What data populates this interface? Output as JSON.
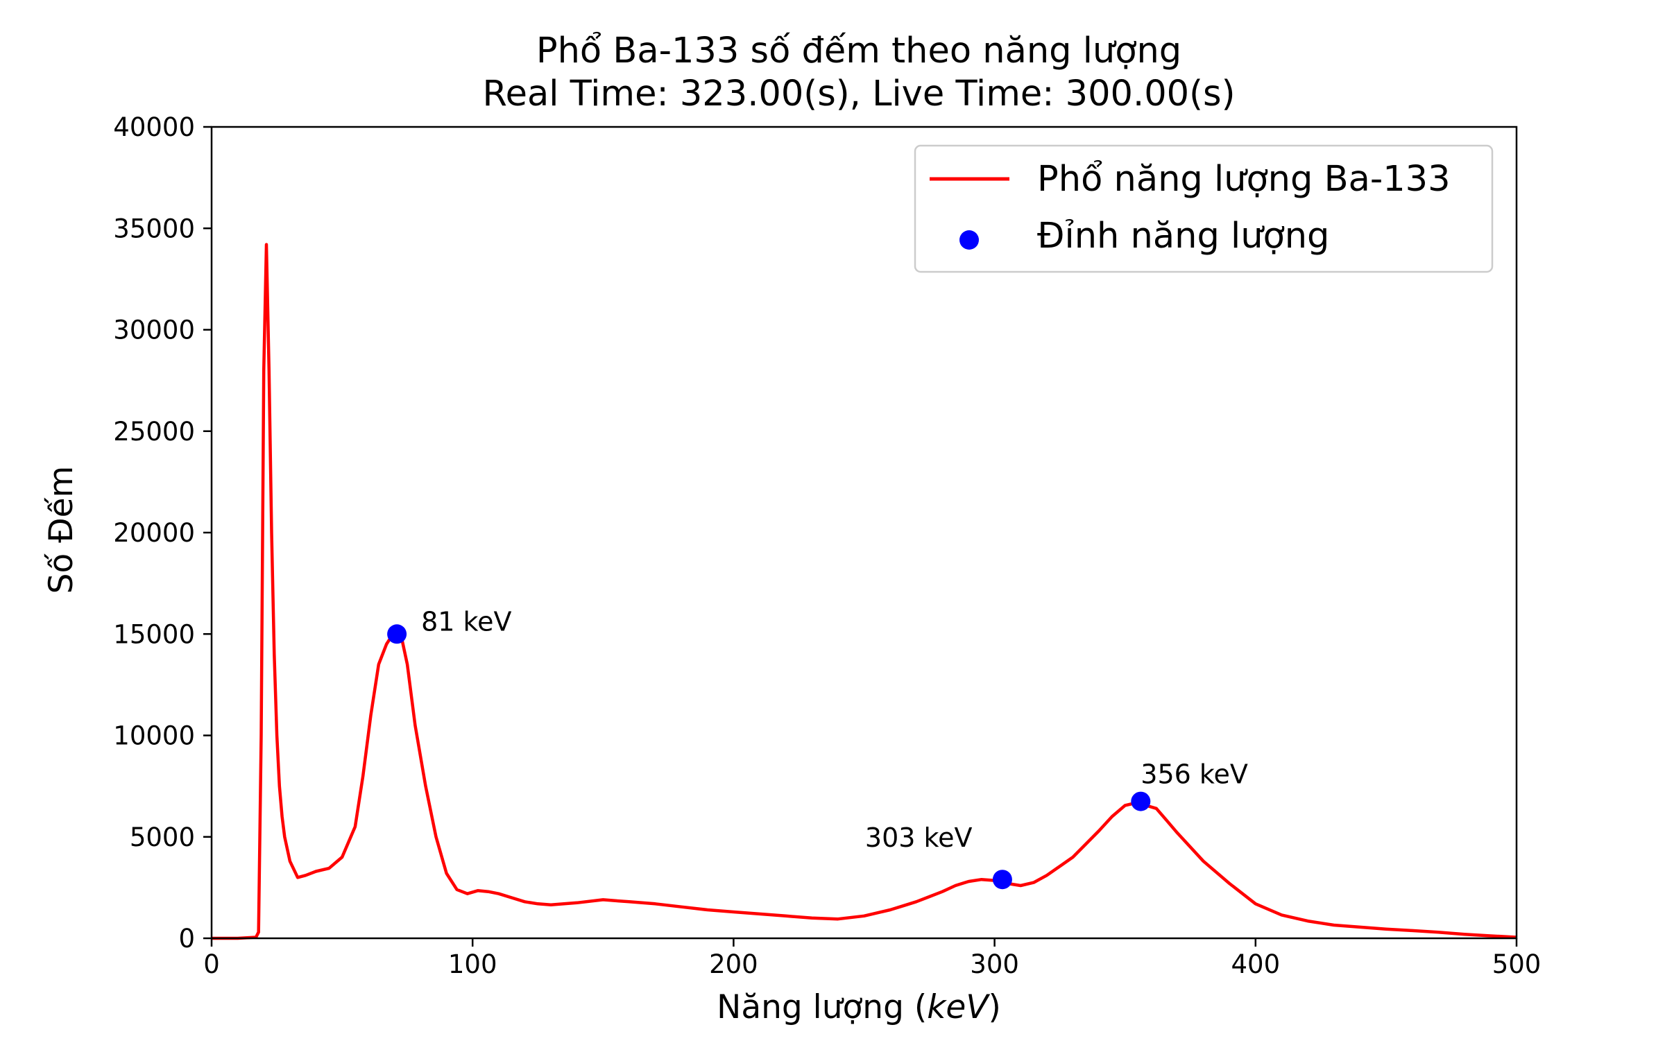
{
  "chart_data": {
    "type": "line",
    "title_line1": "Phổ Ba-133 số đếm theo năng lượng",
    "title_line2": "Real Time: 323.00(s), Live Time: 300.00(s)",
    "xlabel_text": "Năng lượng (",
    "xlabel_unit": "keV",
    "xlabel_close": ")",
    "ylabel": "Số Đếm",
    "xlim": [
      0,
      500
    ],
    "ylim": [
      0,
      40000
    ],
    "xticks": [
      0,
      100,
      200,
      300,
      400,
      500
    ],
    "yticks": [
      0,
      5000,
      10000,
      15000,
      20000,
      25000,
      30000,
      35000,
      40000
    ],
    "x_tick_labels": [
      "0",
      "100",
      "200",
      "300",
      "400",
      "500"
    ],
    "y_tick_labels": [
      "0",
      "5000",
      "10000",
      "15000",
      "20000",
      "25000",
      "30000",
      "35000",
      "40000"
    ],
    "grid": false,
    "legend_position": "top-right",
    "colors": {
      "spectrum": "#ff0000",
      "peaks": "#0000ff"
    },
    "series": [
      {
        "name": "Phổ năng lượng Ba-133",
        "kind": "line",
        "x": [
          0,
          10,
          17,
          18,
          19,
          20,
          21,
          22,
          23,
          24,
          25,
          26,
          27,
          28,
          30,
          33,
          36,
          40,
          45,
          50,
          55,
          58,
          61,
          64,
          67,
          69,
          71,
          73,
          75,
          78,
          82,
          86,
          90,
          94,
          98,
          102,
          106,
          110,
          115,
          120,
          125,
          130,
          135,
          140,
          150,
          155,
          160,
          170,
          180,
          190,
          200,
          210,
          220,
          230,
          240,
          250,
          260,
          265,
          270,
          275,
          280,
          285,
          290,
          295,
          300,
          305,
          310,
          315,
          320,
          330,
          340,
          345,
          350,
          355,
          358,
          362,
          366,
          370,
          380,
          390,
          400,
          410,
          420,
          430,
          440,
          450,
          460,
          470,
          480,
          490,
          500
        ],
        "y": [
          0,
          0,
          50,
          300,
          10000,
          28000,
          34200,
          28000,
          20000,
          14000,
          10000,
          7500,
          6000,
          5000,
          3800,
          3000,
          3100,
          3300,
          3450,
          4000,
          5500,
          8000,
          11000,
          13500,
          14500,
          14900,
          15000,
          14700,
          13500,
          10500,
          7500,
          5000,
          3200,
          2400,
          2200,
          2350,
          2300,
          2200,
          2000,
          1800,
          1700,
          1650,
          1700,
          1750,
          1900,
          1850,
          1800,
          1700,
          1550,
          1400,
          1300,
          1200,
          1100,
          1000,
          950,
          1100,
          1400,
          1600,
          1800,
          2050,
          2300,
          2600,
          2800,
          2900,
          2850,
          2700,
          2600,
          2750,
          3100,
          4000,
          5300,
          6000,
          6550,
          6700,
          6550,
          6400,
          5800,
          5200,
          3800,
          2700,
          1700,
          1150,
          850,
          650,
          550,
          450,
          380,
          300,
          200,
          120,
          50
        ]
      },
      {
        "name": "Đỉnh năng lượng",
        "kind": "scatter",
        "x": [
          71,
          303,
          356
        ],
        "y": [
          15000,
          2900,
          6750
        ]
      }
    ],
    "annotations": [
      {
        "text": "81 keV",
        "x": 71,
        "y": 15000
      },
      {
        "text": "303 keV",
        "x": 303,
        "y": 2900
      },
      {
        "text": "356 keV",
        "x": 356,
        "y": 6750
      }
    ]
  }
}
